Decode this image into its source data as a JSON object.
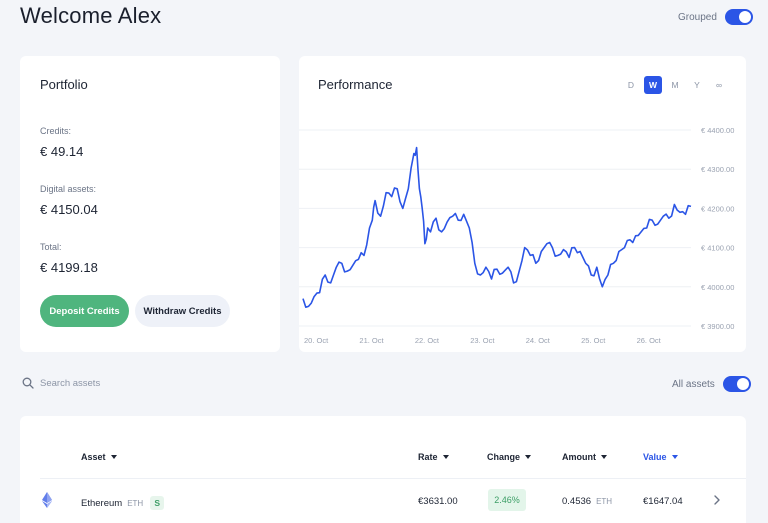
{
  "header": {
    "title": "Welcome Alex",
    "grouped_label": "Grouped",
    "grouped_on": true
  },
  "portfolio": {
    "title": "Portfolio",
    "credits_label": "Credits:",
    "credits_value": "€ 49.14",
    "digital_label": "Digital assets:",
    "digital_value": "€ 4150.04",
    "total_label": "Total:",
    "total_value": "€ 4199.18",
    "deposit_label": "Deposit Credits",
    "withdraw_label": "Withdraw Credits"
  },
  "performance": {
    "title": "Performance",
    "periods": [
      "D",
      "W",
      "M",
      "Y",
      "∞"
    ],
    "active_period": "W"
  },
  "chart_data": {
    "type": "line",
    "x_ticks": [
      "20. Oct",
      "21. Oct",
      "22. Oct",
      "23. Oct",
      "24. Oct",
      "25. Oct",
      "26. Oct"
    ],
    "y_ticks": [
      "€ 3900.00",
      "€ 4000.00",
      "€ 4100.00",
      "€ 4200.00",
      "€ 4300.00",
      "€ 4400.00"
    ],
    "ylim": [
      3900,
      4400
    ],
    "xlim": [
      19.8,
      26.8
    ],
    "grid": true,
    "series": [
      {
        "color": "#2b55e6",
        "x": [
          19.8,
          19.9,
          20.0,
          20.1,
          20.2,
          20.3,
          20.4,
          20.5,
          20.6,
          20.7,
          20.8,
          20.9,
          21.0,
          21.05,
          21.1,
          21.2,
          21.3,
          21.4,
          21.5,
          21.6,
          21.7,
          21.8,
          21.85,
          21.9,
          21.95,
          22.0,
          22.05,
          22.1,
          22.2,
          22.3,
          22.4,
          22.5,
          22.6,
          22.7,
          22.8,
          22.9,
          23.0,
          23.1,
          23.2,
          23.3,
          23.4,
          23.5,
          23.6,
          23.7,
          23.8,
          23.9,
          24.0,
          24.1,
          24.2,
          24.3,
          24.4,
          24.5,
          24.6,
          24.7,
          24.8,
          24.9,
          25.0,
          25.1,
          25.2,
          25.3,
          25.4,
          25.5,
          25.6,
          25.7,
          25.8,
          25.9,
          26.0,
          26.1,
          26.2,
          26.3,
          26.4,
          26.5,
          26.6,
          26.7,
          26.8
        ],
        "y": [
          3970,
          3950,
          3975,
          3985,
          4030,
          4010,
          4050,
          4060,
          4040,
          4055,
          4070,
          4080,
          4150,
          4170,
          4220,
          4180,
          4240,
          4230,
          4250,
          4200,
          4250,
          4340,
          4355,
          4250,
          4200,
          4110,
          4150,
          4140,
          4175,
          4140,
          4165,
          4180,
          4170,
          4185,
          4150,
          4060,
          4030,
          4050,
          4020,
          4045,
          4035,
          4050,
          4010,
          4040,
          4100,
          4080,
          4060,
          4090,
          4110,
          4100,
          4080,
          4095,
          4075,
          4100,
          4090,
          4060,
          4030,
          4050,
          4000,
          4030,
          4060,
          4090,
          4100,
          4120,
          4130,
          4140,
          4150,
          4170,
          4160,
          4180,
          4175,
          4210,
          4190,
          4185,
          4205
        ]
      }
    ]
  },
  "search": {
    "placeholder": "Search assets"
  },
  "all_assets": {
    "label": "All assets",
    "on": true
  },
  "table": {
    "columns": {
      "asset": "Asset",
      "rate": "Rate",
      "change": "Change",
      "amount": "Amount",
      "value": "Value"
    },
    "rows": [
      {
        "name": "Ethereum",
        "symbol": "ETH",
        "badge": "S",
        "rate": "€3631.00",
        "change": "2.46%",
        "amount": "0.4536",
        "amount_unit": "ETH",
        "value": "€1647.04"
      }
    ]
  },
  "colors": {
    "accent": "#2b55e6",
    "positive": "#4fb57e"
  }
}
